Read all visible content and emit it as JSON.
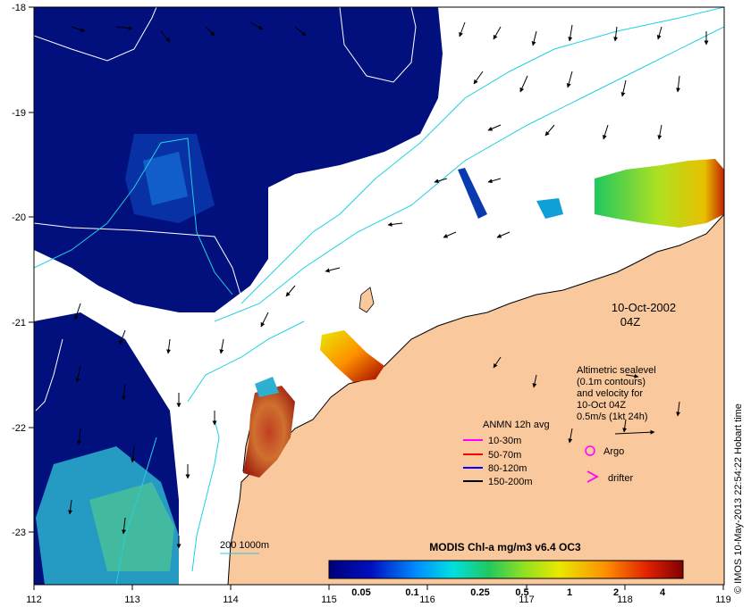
{
  "map": {
    "lon_ticks": [
      "112",
      "113",
      "114",
      "115",
      "116",
      "117",
      "118",
      "119"
    ],
    "lat_ticks": [
      "-18",
      "-19",
      "-20",
      "-21",
      "-22",
      "-23"
    ],
    "date": "10-Oct-2002",
    "time": "04Z",
    "credit": "© IMOS 10-May-2013 22:54:22 Hobart time",
    "land_color": "#f9c99d",
    "ocean_no_data_color": "#ffffff"
  },
  "altimetry_legend": {
    "lines": [
      "Altimetric sealevel",
      "(0.1m contours)",
      "and velocity for",
      "10-Oct 04Z",
      "0.5m/s (1kt 24h)"
    ]
  },
  "anmn_legend": {
    "title": "ANMN 12h avg",
    "items": [
      {
        "label": "10-30m",
        "color": "#ff00ff"
      },
      {
        "label": "50-70m",
        "color": "#ff0000"
      },
      {
        "label": "80-120m",
        "color": "#0000ff"
      },
      {
        "label": "150-200m",
        "color": "#000000"
      }
    ]
  },
  "markers": {
    "argo": "Argo",
    "drifter": "drifter",
    "argo_color": "#ff00ff",
    "drifter_color": "#ff00ff"
  },
  "isobath_legend": "200  1000m",
  "colorbar": {
    "title": "MODIS Chl-a mg/m3 v6.4 OC3",
    "ticks": [
      "0.05",
      "0.1",
      "0.25",
      "0.5",
      "1",
      "2",
      "4"
    ]
  }
}
